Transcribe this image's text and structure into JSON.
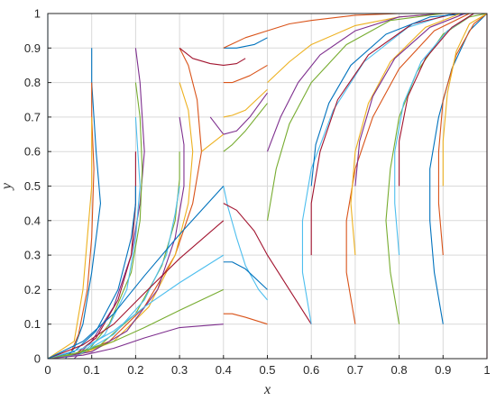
{
  "chart_data": {
    "type": "line",
    "title": "",
    "xlabel": "x",
    "ylabel": "y",
    "xlim": [
      0,
      1
    ],
    "ylim": [
      0,
      1
    ],
    "xticks": [
      "0",
      "0.1",
      "0.2",
      "0.3",
      "0.4",
      "0.5",
      "0.6",
      "0.7",
      "0.8",
      "0.9",
      "1"
    ],
    "yticks": [
      "0",
      "0.1",
      "0.2",
      "0.3",
      "0.4",
      "0.5",
      "0.6",
      "0.7",
      "0.8",
      "0.9",
      "1"
    ],
    "grid": true,
    "legend": "none",
    "colors": [
      "#0072BD",
      "#D95319",
      "#EDB120",
      "#7E2F8E",
      "#77AC30",
      "#4DBEEE",
      "#A2142F"
    ],
    "series": [
      {
        "x": [
          0.1,
          0.1,
          0.11,
          0.12,
          0.1,
          0.08,
          0.06,
          0.04,
          0.0
        ],
        "y": [
          0.9,
          0.8,
          0.6,
          0.45,
          0.25,
          0.1,
          0.03,
          0.0,
          0.0
        ]
      },
      {
        "x": [
          0.1,
          0.1,
          0.105,
          0.1,
          0.09,
          0.07,
          0.05,
          0.0
        ],
        "y": [
          0.8,
          0.7,
          0.55,
          0.35,
          0.2,
          0.07,
          0.01,
          0.0
        ]
      },
      {
        "x": [
          0.1,
          0.1,
          0.1,
          0.09,
          0.08,
          0.06,
          0.0
        ],
        "y": [
          0.7,
          0.6,
          0.5,
          0.35,
          0.2,
          0.05,
          0.0
        ]
      },
      {
        "x": [
          0.2,
          0.21,
          0.22,
          0.21,
          0.19,
          0.15,
          0.1,
          0.06,
          0.0
        ],
        "y": [
          0.9,
          0.8,
          0.6,
          0.45,
          0.3,
          0.15,
          0.05,
          0.0,
          0.0
        ]
      },
      {
        "x": [
          0.2,
          0.21,
          0.215,
          0.21,
          0.19,
          0.14,
          0.09,
          0.0
        ],
        "y": [
          0.8,
          0.7,
          0.55,
          0.4,
          0.25,
          0.1,
          0.02,
          0.0
        ]
      },
      {
        "x": [
          0.2,
          0.205,
          0.21,
          0.2,
          0.18,
          0.13,
          0.07,
          0.0
        ],
        "y": [
          0.7,
          0.6,
          0.5,
          0.35,
          0.2,
          0.07,
          0.01,
          0.0
        ]
      },
      {
        "x": [
          0.2,
          0.2,
          0.2,
          0.19,
          0.16,
          0.11,
          0.06,
          0.0
        ],
        "y": [
          0.6,
          0.55,
          0.45,
          0.3,
          0.17,
          0.06,
          0.01,
          0.0
        ]
      },
      {
        "x": [
          0.2,
          0.2,
          0.19,
          0.16,
          0.11,
          0.06,
          0.0
        ],
        "y": [
          0.5,
          0.45,
          0.35,
          0.2,
          0.08,
          0.02,
          0.0
        ]
      },
      {
        "x": [
          0.3,
          0.32,
          0.34,
          0.35,
          0.33,
          0.29,
          0.22,
          0.14,
          0.06,
          0.0
        ],
        "y": [
          0.9,
          0.85,
          0.75,
          0.6,
          0.45,
          0.3,
          0.15,
          0.05,
          0.01,
          0.0
        ]
      },
      {
        "x": [
          0.3,
          0.32,
          0.33,
          0.32,
          0.29,
          0.23,
          0.15,
          0.07,
          0.0
        ],
        "y": [
          0.8,
          0.72,
          0.6,
          0.45,
          0.3,
          0.15,
          0.05,
          0.01,
          0.0
        ]
      },
      {
        "x": [
          0.3,
          0.31,
          0.31,
          0.29,
          0.25,
          0.18,
          0.1,
          0.0
        ],
        "y": [
          0.7,
          0.62,
          0.5,
          0.35,
          0.2,
          0.08,
          0.02,
          0.0
        ]
      },
      {
        "x": [
          0.3,
          0.3,
          0.29,
          0.26,
          0.2,
          0.12,
          0.05,
          0.0
        ],
        "y": [
          0.6,
          0.52,
          0.4,
          0.27,
          0.13,
          0.04,
          0.01,
          0.0
        ]
      },
      {
        "x": [
          0.3,
          0.29,
          0.27,
          0.22,
          0.15,
          0.07,
          0.0
        ],
        "y": [
          0.5,
          0.42,
          0.3,
          0.17,
          0.07,
          0.01,
          0.0
        ]
      },
      {
        "x": [
          0.3,
          0.33,
          0.37,
          0.4,
          0.43,
          0.45
        ],
        "y": [
          0.9,
          0.87,
          0.855,
          0.85,
          0.855,
          0.87
        ]
      },
      {
        "x": [
          0.4,
          0.43,
          0.47,
          0.5
        ],
        "y": [
          0.9,
          0.9,
          0.91,
          0.93
        ]
      },
      {
        "x": [
          0.4,
          0.42,
          0.46,
          0.5
        ],
        "y": [
          0.8,
          0.8,
          0.82,
          0.85
        ]
      },
      {
        "x": [
          0.4,
          0.42,
          0.45,
          0.5
        ],
        "y": [
          0.7,
          0.705,
          0.72,
          0.78
        ]
      },
      {
        "x": [
          0.37,
          0.4,
          0.43,
          0.46,
          0.5
        ],
        "y": [
          0.7,
          0.65,
          0.66,
          0.7,
          0.77
        ]
      },
      {
        "x": [
          0.4,
          0.42,
          0.45,
          0.5
        ],
        "y": [
          0.6,
          0.62,
          0.66,
          0.74
        ]
      },
      {
        "x": [
          0.4,
          0.41,
          0.43,
          0.45,
          0.48,
          0.5
        ],
        "y": [
          0.5,
          0.44,
          0.35,
          0.27,
          0.2,
          0.17
        ]
      },
      {
        "x": [
          0.4,
          0.43,
          0.47,
          0.5,
          0.55,
          0.6
        ],
        "y": [
          0.45,
          0.43,
          0.37,
          0.3,
          0.2,
          0.1
        ]
      },
      {
        "x": [
          0.4,
          0.42,
          0.45,
          0.5
        ],
        "y": [
          0.28,
          0.28,
          0.26,
          0.2
        ]
      },
      {
        "x": [
          0.4,
          0.42,
          0.45,
          0.5
        ],
        "y": [
          0.13,
          0.13,
          0.12,
          0.1
        ]
      },
      {
        "x": [
          0.35,
          0.4
        ],
        "y": [
          0.6,
          0.65
        ]
      },
      {
        "x": [
          0.0,
          0.08,
          0.15,
          0.22,
          0.3,
          0.4
        ],
        "y": [
          0.0,
          0.01,
          0.03,
          0.06,
          0.09,
          0.1
        ]
      },
      {
        "x": [
          0.0,
          0.08,
          0.15,
          0.22,
          0.3,
          0.4
        ],
        "y": [
          0.0,
          0.02,
          0.05,
          0.09,
          0.14,
          0.2
        ]
      },
      {
        "x": [
          0.0,
          0.08,
          0.15,
          0.22,
          0.3,
          0.4
        ],
        "y": [
          0.0,
          0.03,
          0.08,
          0.15,
          0.22,
          0.3
        ]
      },
      {
        "x": [
          0.0,
          0.08,
          0.15,
          0.22,
          0.3,
          0.4
        ],
        "y": [
          0.0,
          0.04,
          0.1,
          0.19,
          0.29,
          0.4
        ]
      },
      {
        "x": [
          0.0,
          0.08,
          0.15,
          0.22,
          0.3,
          0.4
        ],
        "y": [
          0.0,
          0.05,
          0.13,
          0.24,
          0.36,
          0.5
        ]
      },
      {
        "x": [
          0.4,
          0.45,
          0.5,
          0.55,
          0.6,
          0.7,
          0.8,
          0.9,
          1.0
        ],
        "y": [
          0.9,
          0.93,
          0.95,
          0.97,
          0.98,
          0.995,
          1.0,
          1.0,
          1.0
        ]
      },
      {
        "x": [
          0.5,
          0.55,
          0.6,
          0.7,
          0.8,
          0.9,
          1.0
        ],
        "y": [
          0.8,
          0.86,
          0.91,
          0.965,
          0.99,
          1.0,
          1.0
        ]
      },
      {
        "x": [
          0.5,
          0.53,
          0.57,
          0.62,
          0.7,
          0.8,
          0.9,
          1.0
        ],
        "y": [
          0.6,
          0.7,
          0.8,
          0.88,
          0.95,
          0.99,
          1.0,
          1.0
        ]
      },
      {
        "x": [
          0.5,
          0.52,
          0.55,
          0.6,
          0.68,
          0.78,
          0.9,
          1.0
        ],
        "y": [
          0.4,
          0.55,
          0.68,
          0.8,
          0.91,
          0.98,
          1.0,
          1.0
        ]
      },
      {
        "x": [
          0.6,
          0.58,
          0.58,
          0.6,
          0.65,
          0.72,
          0.82,
          0.92,
          1.0
        ],
        "y": [
          0.1,
          0.25,
          0.4,
          0.55,
          0.72,
          0.86,
          0.96,
          1.0,
          1.0
        ]
      },
      {
        "x": [
          0.6,
          0.6,
          0.62,
          0.66,
          0.73,
          0.83,
          0.93,
          1.0
        ],
        "y": [
          0.3,
          0.45,
          0.6,
          0.75,
          0.88,
          0.97,
          1.0,
          1.0
        ]
      },
      {
        "x": [
          0.6,
          0.61,
          0.64,
          0.69,
          0.77,
          0.87,
          0.96,
          1.0
        ],
        "y": [
          0.5,
          0.62,
          0.74,
          0.85,
          0.94,
          0.99,
          1.0,
          1.0
        ]
      },
      {
        "x": [
          0.7,
          0.68,
          0.68,
          0.7,
          0.74,
          0.8,
          0.88,
          0.96,
          1.0
        ],
        "y": [
          0.1,
          0.25,
          0.4,
          0.55,
          0.7,
          0.84,
          0.95,
          1.0,
          1.0
        ]
      },
      {
        "x": [
          0.7,
          0.69,
          0.7,
          0.73,
          0.78,
          0.86,
          0.94,
          1.0
        ],
        "y": [
          0.3,
          0.45,
          0.6,
          0.74,
          0.86,
          0.96,
          1.0,
          1.0
        ]
      },
      {
        "x": [
          0.7,
          0.71,
          0.74,
          0.79,
          0.87,
          0.95,
          1.0
        ],
        "y": [
          0.5,
          0.63,
          0.76,
          0.87,
          0.96,
          1.0,
          1.0
        ]
      },
      {
        "x": [
          0.8,
          0.78,
          0.77,
          0.78,
          0.8,
          0.84,
          0.9,
          0.96,
          1.0
        ],
        "y": [
          0.1,
          0.25,
          0.4,
          0.55,
          0.7,
          0.83,
          0.94,
          0.99,
          1.0
        ]
      },
      {
        "x": [
          0.8,
          0.79,
          0.79,
          0.81,
          0.85,
          0.91,
          0.97,
          1.0
        ],
        "y": [
          0.3,
          0.45,
          0.6,
          0.74,
          0.86,
          0.95,
          1.0,
          1.0
        ]
      },
      {
        "x": [
          0.8,
          0.8,
          0.82,
          0.86,
          0.92,
          0.97,
          1.0
        ],
        "y": [
          0.5,
          0.63,
          0.76,
          0.87,
          0.96,
          1.0,
          1.0
        ]
      },
      {
        "x": [
          0.9,
          0.88,
          0.87,
          0.87,
          0.89,
          0.92,
          0.96,
          1.0
        ],
        "y": [
          0.1,
          0.25,
          0.4,
          0.55,
          0.7,
          0.84,
          0.95,
          1.0
        ]
      },
      {
        "x": [
          0.9,
          0.89,
          0.89,
          0.9,
          0.93,
          0.97,
          1.0
        ],
        "y": [
          0.3,
          0.45,
          0.6,
          0.75,
          0.88,
          0.97,
          1.0
        ]
      },
      {
        "x": [
          0.9,
          0.9,
          0.91,
          0.93,
          0.96,
          1.0
        ],
        "y": [
          0.5,
          0.63,
          0.77,
          0.89,
          0.97,
          1.0
        ]
      },
      {
        "x": [
          0.0,
          0.1,
          0.2,
          0.3,
          0.4,
          0.5,
          0.6,
          0.7,
          0.8,
          0.9,
          1.0
        ],
        "y": [
          1.0,
          1.0,
          1.0,
          1.0,
          1.0,
          1.0,
          1.0,
          1.0,
          1.0,
          1.0,
          1.0
        ]
      },
      {
        "x": [
          0.0,
          0.1,
          0.2,
          0.3,
          0.4,
          0.5,
          0.6,
          0.7,
          0.8,
          0.9,
          1.0
        ],
        "y": [
          0.0,
          0.0,
          0.0,
          0.0,
          0.0,
          0.0,
          0.0,
          0.0,
          0.0,
          0.0,
          0.0
        ]
      },
      {
        "x": [
          0.0,
          0.0
        ],
        "y": [
          0.0,
          1.0
        ]
      },
      {
        "x": [
          1.0,
          1.0
        ],
        "y": [
          0.0,
          1.0
        ]
      }
    ]
  }
}
